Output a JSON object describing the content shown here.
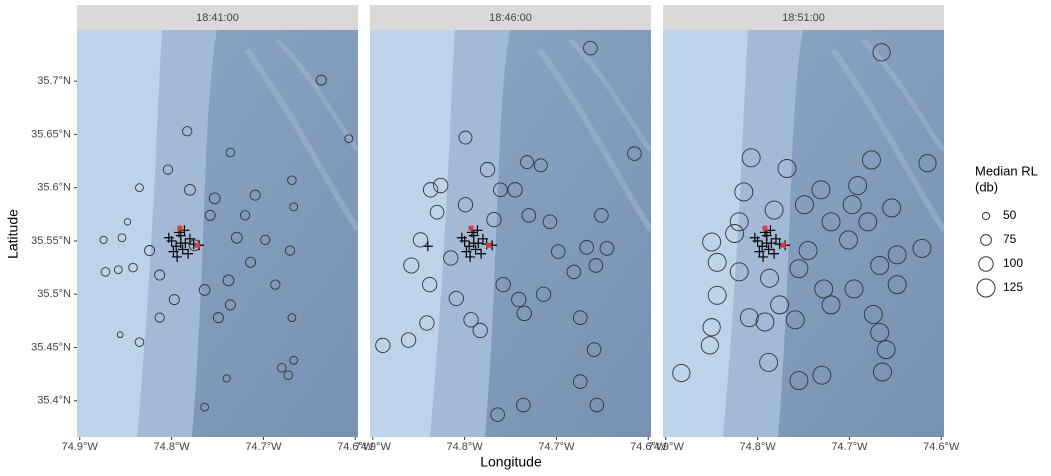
{
  "chart_data": {
    "type": "scatter",
    "x_label": "Longitude",
    "y_label": "Latitude",
    "xlim": [
      -74.903,
      -74.597
    ],
    "ylim": [
      35.366,
      35.748
    ],
    "xticks": [
      {
        "value": -74.9,
        "label": "74.9°W"
      },
      {
        "value": -74.8,
        "label": "74.8°W"
      },
      {
        "value": -74.7,
        "label": "74.7°W"
      },
      {
        "value": -74.6,
        "label": "74.6°W"
      }
    ],
    "yticks": [
      {
        "value": 35.4,
        "label": "35.4°N"
      },
      {
        "value": 35.45,
        "label": "35.45°N"
      },
      {
        "value": 35.5,
        "label": "35.5°N"
      },
      {
        "value": 35.55,
        "label": "35.55°N"
      },
      {
        "value": 35.6,
        "label": "35.6°N"
      },
      {
        "value": 35.65,
        "label": "35.65°N"
      },
      {
        "value": 35.7,
        "label": "35.7°N"
      }
    ],
    "legend_title": [
      "Median RL",
      "(db)"
    ],
    "size_breaks": [
      50,
      75,
      100,
      125
    ],
    "legend_position": "right",
    "circle_color": "#333333",
    "station_color": "#e8353b",
    "panels": [
      {
        "label": "18:41:00",
        "x": [
          -74.637,
          -74.607,
          -74.783,
          -74.804,
          -74.78,
          -74.736,
          -74.669,
          -74.667,
          -74.709,
          -74.753,
          -74.758,
          -74.72,
          -74.835,
          -74.848,
          -74.854,
          -74.874,
          -74.842,
          -74.858,
          -74.872,
          -74.824,
          -74.813,
          -74.797,
          -74.813,
          -74.835,
          -74.856,
          -74.764,
          -74.736,
          -74.749,
          -74.738,
          -74.714,
          -74.698,
          -74.671,
          -74.687,
          -74.669,
          -74.667,
          -74.68,
          -74.673,
          -74.764,
          -74.74,
          -74.729,
          -74.775
        ],
        "y": [
          35.701,
          35.646,
          35.653,
          35.617,
          35.598,
          35.633,
          35.607,
          35.582,
          35.593,
          35.59,
          35.574,
          35.574,
          35.6,
          35.568,
          35.553,
          35.551,
          35.525,
          35.523,
          35.521,
          35.541,
          35.518,
          35.495,
          35.478,
          35.455,
          35.462,
          35.504,
          35.49,
          35.478,
          35.513,
          35.53,
          35.551,
          35.541,
          35.509,
          35.478,
          35.438,
          35.431,
          35.424,
          35.394,
          35.421,
          35.553,
          35.546
        ],
        "size": [
          70,
          55,
          65,
          65,
          75,
          60,
          60,
          55,
          70,
          75,
          70,
          65,
          55,
          45,
          55,
          50,
          60,
          55,
          60,
          70,
          70,
          70,
          65,
          60,
          40,
          75,
          70,
          70,
          75,
          70,
          65,
          65,
          65,
          55,
          55,
          60,
          60,
          55,
          50,
          75,
          75
        ],
        "crosses_x": [
          -74.8,
          -74.795,
          -74.79,
          -74.785,
          -74.78,
          -74.798,
          -74.788,
          -74.792,
          -74.782,
          -74.776,
          -74.803,
          -74.786,
          -74.794,
          -74.79,
          -74.77
        ],
        "crosses_y": [
          35.55,
          35.545,
          35.555,
          35.548,
          35.552,
          35.54,
          35.542,
          35.558,
          35.538,
          35.547,
          35.553,
          35.56,
          35.535,
          35.548,
          35.546
        ],
        "stations_x": [
          -74.791,
          -74.772
        ],
        "stations_y": [
          35.562,
          35.546
        ]
      },
      {
        "label": "18:46:00",
        "x": [
          -74.663,
          -74.799,
          -74.615,
          -74.732,
          -74.717,
          -74.775,
          -74.837,
          -74.826,
          -74.761,
          -74.745,
          -74.799,
          -74.83,
          -74.73,
          -74.651,
          -74.768,
          -74.707,
          -74.848,
          -74.815,
          -74.858,
          -74.838,
          -74.809,
          -74.793,
          -74.783,
          -74.758,
          -74.741,
          -74.714,
          -74.698,
          -74.681,
          -74.657,
          -74.667,
          -74.645,
          -74.674,
          -74.659,
          -74.656,
          -74.674,
          -74.736,
          -74.764,
          -74.889,
          -74.861,
          -74.841,
          -74.735
        ],
        "y": [
          35.731,
          35.647,
          35.632,
          35.624,
          35.621,
          35.617,
          35.598,
          35.602,
          35.598,
          35.598,
          35.584,
          35.577,
          35.574,
          35.574,
          35.57,
          35.568,
          35.551,
          35.534,
          35.527,
          35.509,
          35.496,
          35.476,
          35.466,
          35.509,
          35.495,
          35.5,
          35.54,
          35.521,
          35.527,
          35.544,
          35.543,
          35.478,
          35.448,
          35.396,
          35.418,
          35.396,
          35.387,
          35.452,
          35.457,
          35.473,
          35.482
        ],
        "size": [
          95,
          90,
          95,
          90,
          90,
          100,
          100,
          100,
          95,
          100,
          100,
          95,
          95,
          95,
          100,
          95,
          100,
          100,
          105,
          100,
          100,
          100,
          100,
          100,
          100,
          100,
          95,
          95,
          95,
          95,
          95,
          95,
          95,
          95,
          95,
          95,
          95,
          100,
          100,
          100,
          100
        ],
        "crosses_x": [
          -74.8,
          -74.795,
          -74.79,
          -74.785,
          -74.78,
          -74.798,
          -74.788,
          -74.792,
          -74.782,
          -74.776,
          -74.803,
          -74.786,
          -74.794,
          -74.79,
          -74.77,
          -74.84
        ],
        "crosses_y": [
          35.55,
          35.545,
          35.555,
          35.548,
          35.552,
          35.54,
          35.542,
          35.558,
          35.538,
          35.547,
          35.553,
          35.56,
          35.535,
          35.548,
          35.546,
          35.545
        ],
        "stations_x": [
          -74.793,
          -74.774
        ],
        "stations_y": [
          35.562,
          35.546
        ]
      },
      {
        "label": "18:51:00",
        "x": [
          -74.665,
          -74.615,
          -74.676,
          -74.807,
          -74.768,
          -74.691,
          -74.815,
          -74.731,
          -74.749,
          -74.654,
          -74.697,
          -74.782,
          -74.82,
          -74.72,
          -74.68,
          -74.85,
          -74.825,
          -74.745,
          -74.701,
          -74.648,
          -74.621,
          -74.844,
          -74.82,
          -74.787,
          -74.755,
          -74.728,
          -74.695,
          -74.667,
          -74.648,
          -74.844,
          -74.809,
          -74.776,
          -74.792,
          -74.759,
          -74.72,
          -74.674,
          -74.85,
          -74.852,
          -74.883,
          -74.755,
          -74.73,
          -74.664,
          -74.66,
          -74.667,
          -74.788
        ],
        "y": [
          35.727,
          35.623,
          35.626,
          35.628,
          35.618,
          35.602,
          35.596,
          35.598,
          35.584,
          35.581,
          35.584,
          35.579,
          35.568,
          35.568,
          35.568,
          35.549,
          35.557,
          35.541,
          35.551,
          35.537,
          35.543,
          35.53,
          35.521,
          35.515,
          35.524,
          35.505,
          35.505,
          35.527,
          35.509,
          35.499,
          35.478,
          35.49,
          35.474,
          35.476,
          35.49,
          35.481,
          35.469,
          35.452,
          35.426,
          35.419,
          35.424,
          35.427,
          35.448,
          35.464,
          35.436
        ],
        "size": [
          120,
          120,
          125,
          125,
          125,
          125,
          125,
          125,
          125,
          125,
          125,
          125,
          125,
          125,
          125,
          125,
          125,
          125,
          125,
          125,
          125,
          125,
          125,
          125,
          125,
          125,
          125,
          125,
          125,
          125,
          125,
          125,
          125,
          125,
          125,
          125,
          120,
          120,
          120,
          125,
          125,
          125,
          125,
          125,
          125
        ],
        "crosses_x": [
          -74.8,
          -74.795,
          -74.79,
          -74.785,
          -74.78,
          -74.798,
          -74.788,
          -74.792,
          -74.782,
          -74.776,
          -74.803,
          -74.786,
          -74.794,
          -74.79,
          -74.77
        ],
        "crosses_y": [
          35.55,
          35.545,
          35.555,
          35.548,
          35.552,
          35.54,
          35.542,
          35.558,
          35.538,
          35.547,
          35.553,
          35.56,
          35.535,
          35.548,
          35.546
        ],
        "stations_x": [
          -74.792,
          -74.772
        ],
        "stations_y": [
          35.562,
          35.546
        ]
      }
    ]
  }
}
